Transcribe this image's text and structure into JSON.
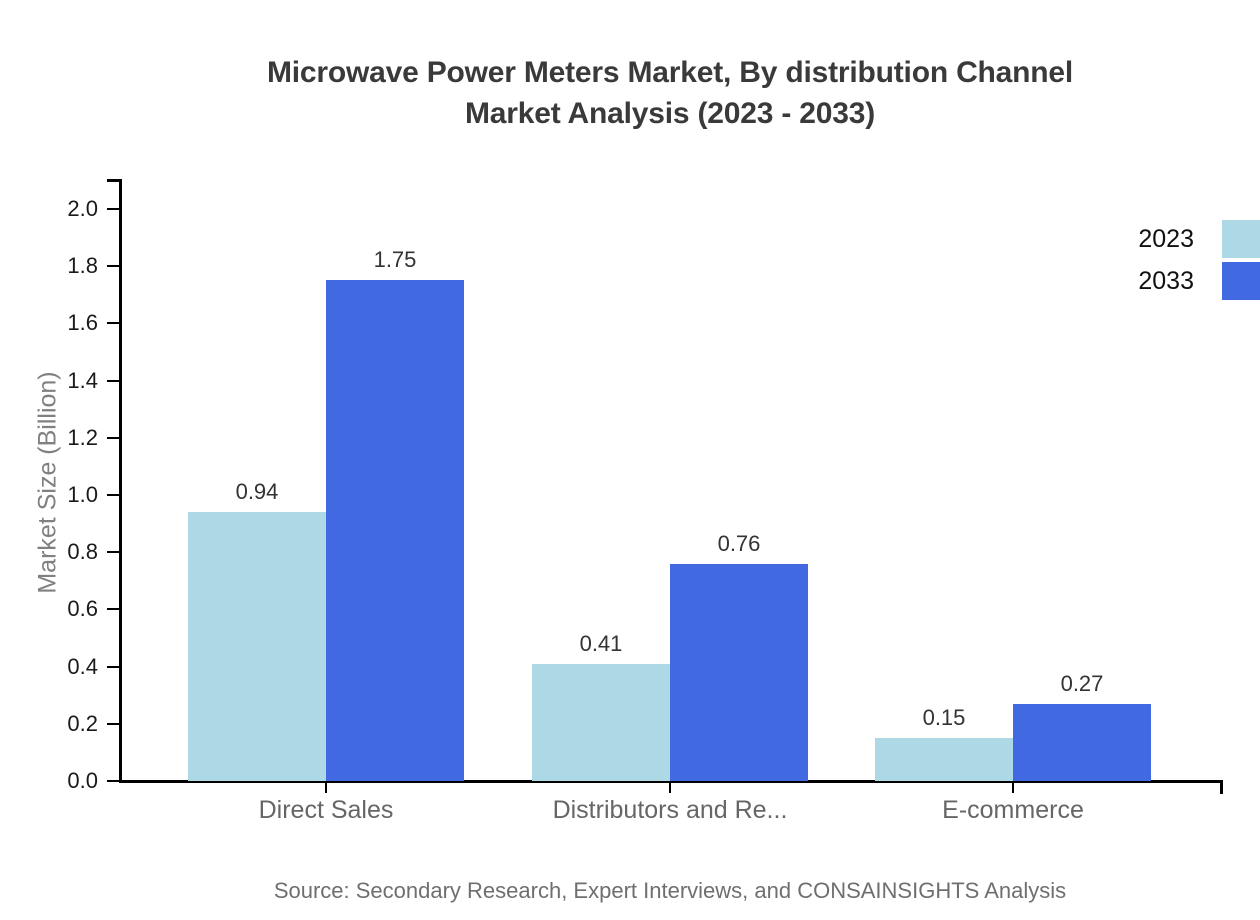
{
  "title": {
    "line1": "Microwave Power Meters Market, By distribution Channel",
    "line2": "Market Analysis (2023 - 2033)"
  },
  "source": "Source: Secondary Research, Expert Interviews, and CONSAINSIGHTS Analysis",
  "chart_data": {
    "type": "bar",
    "categories": [
      "Direct Sales",
      "Distributors and Re...",
      "E-commerce"
    ],
    "series": [
      {
        "name": "2023",
        "color": "#ADD8E6",
        "values": [
          0.94,
          0.41,
          0.15
        ]
      },
      {
        "name": "2033",
        "color": "#4169E1",
        "values": [
          1.75,
          0.76,
          0.27
        ]
      }
    ],
    "title": "Microwave Power Meters Market, By distribution Channel Market Analysis (2023 - 2033)",
    "xlabel": "",
    "ylabel": "Market Size (Billion)",
    "ylim": [
      0.0,
      2.0
    ],
    "ytick_step": 0.2,
    "grid": false,
    "legend_position": "top-right",
    "bar_value_labels": [
      "0.94",
      "1.75",
      "0.41",
      "0.76",
      "0.15",
      "0.27"
    ],
    "axis_color": "#000000"
  }
}
